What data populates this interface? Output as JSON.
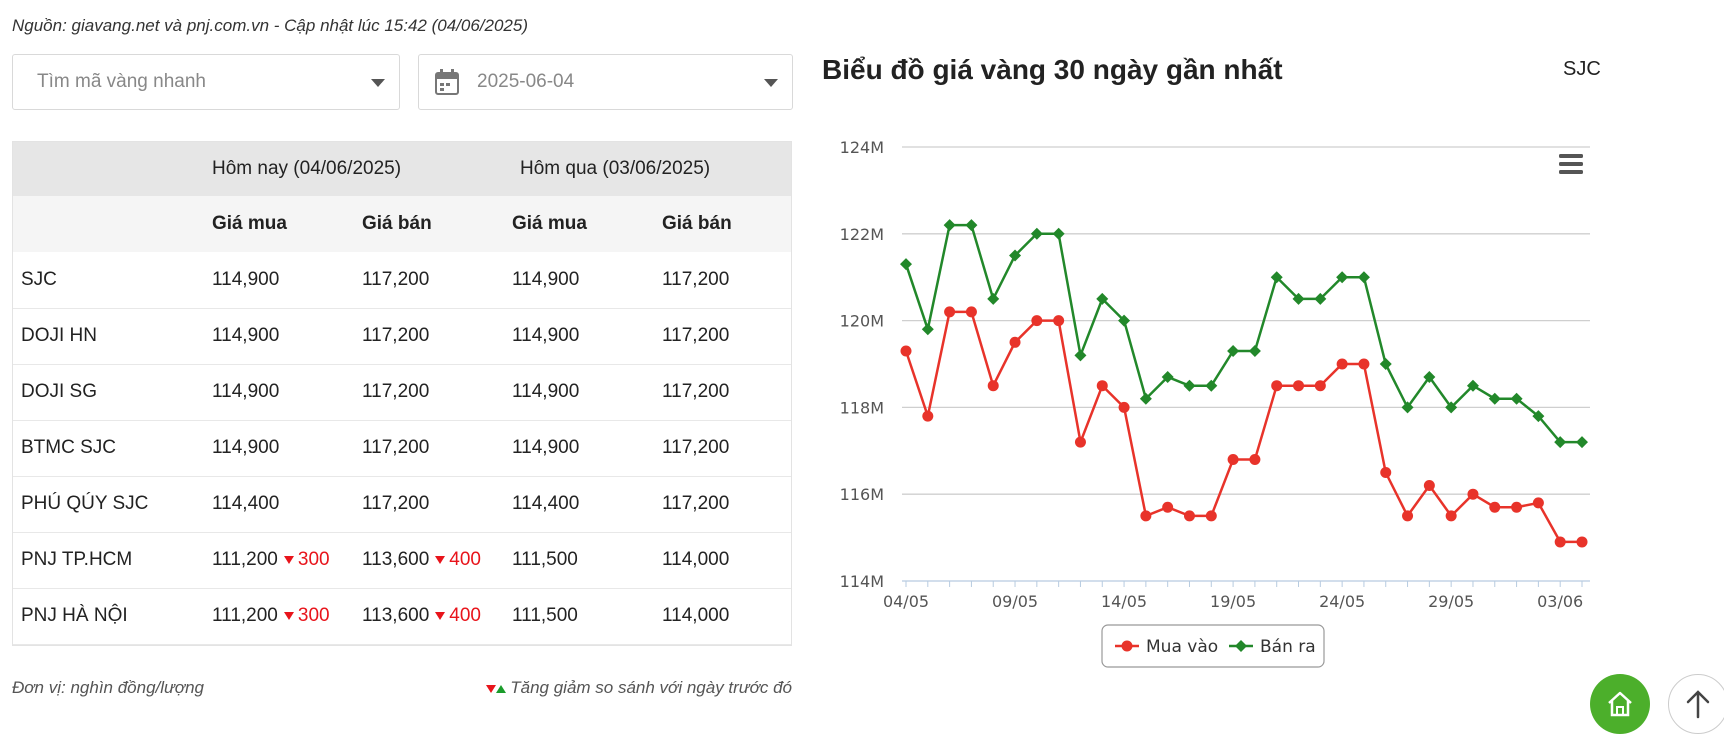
{
  "source_note": "Nguồn: giavang.net và pnj.com.vn - Cập nhật lúc 15:42 (04/06/2025)",
  "search": {
    "placeholder": "Tìm mã vàng nhanh"
  },
  "date_picker": {
    "value": "2025-06-04"
  },
  "table": {
    "today_header": "Hôm nay (04/06/2025)",
    "yesterday_header": "Hôm qua (03/06/2025)",
    "buy_label": "Giá mua",
    "sell_label": "Giá bán",
    "rows": [
      {
        "name": "SJC",
        "today_buy": "114,900",
        "today_buy_change": "",
        "today_sell": "117,200",
        "today_sell_change": "",
        "yest_buy": "114,900",
        "yest_sell": "117,200"
      },
      {
        "name": "DOJI HN",
        "today_buy": "114,900",
        "today_buy_change": "",
        "today_sell": "117,200",
        "today_sell_change": "",
        "yest_buy": "114,900",
        "yest_sell": "117,200"
      },
      {
        "name": "DOJI SG",
        "today_buy": "114,900",
        "today_buy_change": "",
        "today_sell": "117,200",
        "today_sell_change": "",
        "yest_buy": "114,900",
        "yest_sell": "117,200"
      },
      {
        "name": "BTMC SJC",
        "today_buy": "114,900",
        "today_buy_change": "",
        "today_sell": "117,200",
        "today_sell_change": "",
        "yest_buy": "114,900",
        "yest_sell": "117,200"
      },
      {
        "name": "PHÚ QÚY SJC",
        "today_buy": "114,400",
        "today_buy_change": "",
        "today_sell": "117,200",
        "today_sell_change": "",
        "yest_buy": "114,400",
        "yest_sell": "117,200"
      },
      {
        "name": "PNJ TP.HCM",
        "today_buy": "111,200",
        "today_buy_change": "300",
        "today_sell": "113,600",
        "today_sell_change": "400",
        "yest_buy": "111,500",
        "yest_sell": "114,000"
      },
      {
        "name": "PNJ HÀ NỘI",
        "today_buy": "111,200",
        "today_buy_change": "300",
        "today_sell": "113,600",
        "today_sell_change": "400",
        "yest_buy": "111,500",
        "yest_sell": "114,000"
      }
    ]
  },
  "footer": {
    "unit_note": "Đơn vị: nghìn đồng/lượng",
    "change_note": "Tăng giảm so sánh với ngày trước đó"
  },
  "chart_header": {
    "title": "Biểu đồ giá vàng 30 ngày gần nhất",
    "code": "SJC"
  },
  "colors": {
    "buy": "#e8332a",
    "sell": "#22882a",
    "up": "#1a9c2b",
    "down": "#e8141b",
    "home_button": "#4caf2b"
  },
  "icons": {
    "menu": "hamburger-menu-icon",
    "home": "home-icon",
    "scroll_top": "arrow-up-icon",
    "calendar": "calendar-icon"
  },
  "chart_data": {
    "type": "line",
    "title": "Biểu đồ giá vàng 30 ngày gần nhất",
    "y_ticks": [
      "124M",
      "122M",
      "120M",
      "118M",
      "116M",
      "114M"
    ],
    "ylim": [
      114,
      124
    ],
    "x_tick_labels": [
      "04/05",
      "09/05",
      "14/05",
      "19/05",
      "24/05",
      "29/05",
      "03/06"
    ],
    "x": [
      "04/05",
      "05/05",
      "06/05",
      "07/05",
      "08/05",
      "09/05",
      "10/05",
      "11/05",
      "12/05",
      "13/05",
      "14/05",
      "15/05",
      "16/05",
      "17/05",
      "18/05",
      "19/05",
      "20/05",
      "21/05",
      "22/05",
      "23/05",
      "24/05",
      "25/05",
      "26/05",
      "27/05",
      "28/05",
      "29/05",
      "30/05",
      "31/05",
      "01/06",
      "02/06",
      "03/06",
      "04/06"
    ],
    "series": [
      {
        "name": "Mua vào",
        "marker": "circle",
        "values": [
          119.3,
          117.8,
          120.2,
          120.2,
          118.5,
          119.5,
          120.0,
          120.0,
          117.2,
          118.5,
          118.0,
          115.5,
          115.7,
          115.5,
          115.5,
          116.8,
          116.8,
          118.5,
          118.5,
          118.5,
          119.0,
          119.0,
          116.5,
          115.5,
          116.2,
          115.5,
          116.0,
          115.7,
          115.7,
          115.8,
          114.9,
          114.9
        ]
      },
      {
        "name": "Bán ra",
        "marker": "diamond",
        "values": [
          121.3,
          119.8,
          122.2,
          122.2,
          120.5,
          121.5,
          122.0,
          122.0,
          119.2,
          120.5,
          120.0,
          118.2,
          118.7,
          118.5,
          118.5,
          119.3,
          119.3,
          121.0,
          120.5,
          120.5,
          121.0,
          121.0,
          119.0,
          118.0,
          118.7,
          118.0,
          118.5,
          118.2,
          118.2,
          117.8,
          117.2,
          117.2
        ]
      }
    ],
    "grid": true,
    "legend_position": "bottom-center"
  }
}
